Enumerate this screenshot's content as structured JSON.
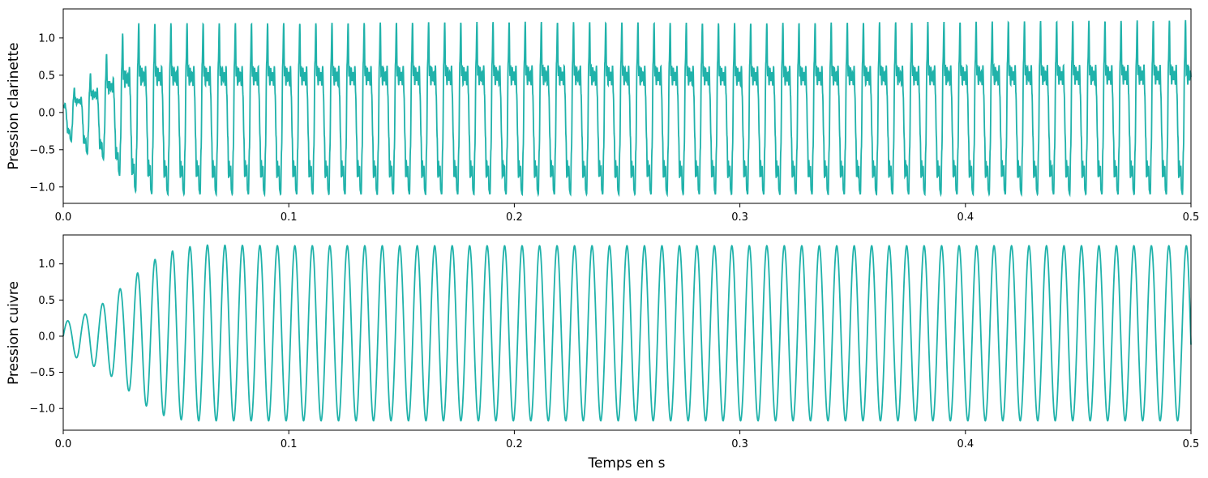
{
  "chart_data": [
    {
      "type": "line",
      "title": "",
      "xlabel": "",
      "ylabel": "Pression clarinette",
      "xlim": [
        0,
        0.5
      ],
      "ylim": [
        -1.22,
        1.39
      ],
      "x_ticks": [
        "0.0",
        "0.1",
        "0.2",
        "0.3",
        "0.4",
        "0.5"
      ],
      "y_ticks": [
        "−1.0",
        "−0.5",
        "0.0",
        "0.5",
        "1.0"
      ],
      "grid": false,
      "color": "#20b2aa",
      "waveform": "clarinet",
      "fundamental_period_s": 0.00714,
      "series": [
        {
          "x": [
            0,
            0.01,
            0.02,
            0.03,
            0.04,
            0.05,
            0.1,
            0.2,
            0.3,
            0.4,
            0.5
          ],
          "peak": [
            0.22,
            0.45,
            0.82,
            1.2,
            1.2,
            1.2,
            1.2,
            1.22,
            1.2,
            1.22,
            1.24
          ],
          "trough": [
            -0.3,
            -0.55,
            -0.65,
            -1.05,
            -1.1,
            -1.1,
            -1.1,
            -1.1,
            -1.1,
            -1.1,
            -1.1
          ]
        }
      ]
    },
    {
      "type": "line",
      "title": "",
      "xlabel": "Temps en s",
      "ylabel": "Pression cuivre",
      "xlim": [
        0,
        0.5
      ],
      "ylim": [
        -1.3,
        1.4
      ],
      "x_ticks": [
        "0.0",
        "0.1",
        "0.2",
        "0.3",
        "0.4",
        "0.5"
      ],
      "y_ticks": [
        "−1.0",
        "−0.5",
        "0.0",
        "0.5",
        "1.0"
      ],
      "grid": false,
      "color": "#20b2aa",
      "waveform": "brass",
      "fundamental_period_s": 0.00775,
      "series": [
        {
          "x": [
            0,
            0.01,
            0.02,
            0.03,
            0.04,
            0.05,
            0.06,
            0.1,
            0.2,
            0.3,
            0.4,
            0.5
          ],
          "peak": [
            0.19,
            0.31,
            0.5,
            0.8,
            1.05,
            1.2,
            1.26,
            1.25,
            1.25,
            1.25,
            1.25,
            1.25
          ],
          "trough": [
            -0.21,
            -0.36,
            -0.52,
            -0.78,
            -1.05,
            -1.15,
            -1.17,
            -1.17,
            -1.17,
            -1.17,
            -1.17,
            -1.17
          ]
        }
      ]
    }
  ]
}
